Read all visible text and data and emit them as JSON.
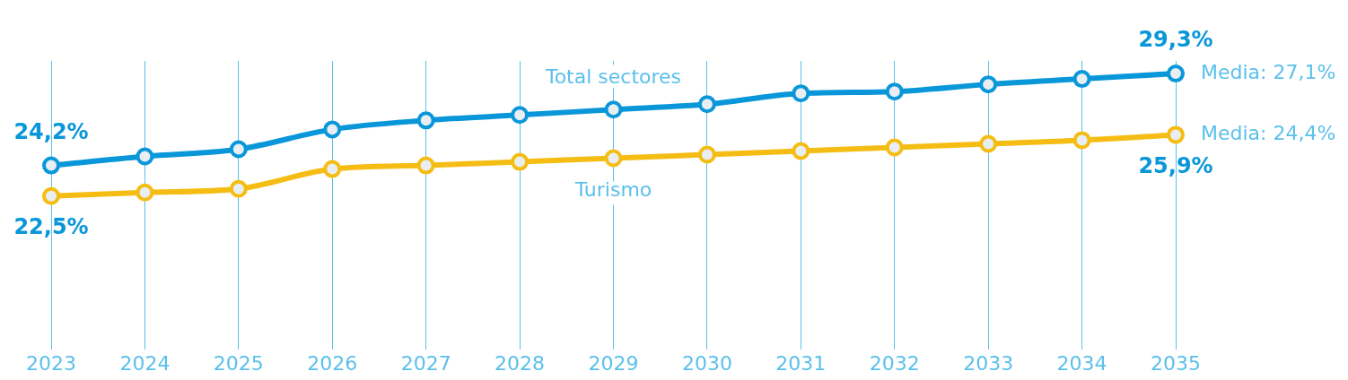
{
  "chart_data": {
    "type": "line",
    "categories": [
      "2023",
      "2024",
      "2025",
      "2026",
      "2027",
      "2028",
      "2029",
      "2030",
      "2031",
      "2032",
      "2033",
      "2034",
      "2035"
    ],
    "tick_labels": "x",
    "grid": "x",
    "marker": "circle",
    "legend": false,
    "series": [
      {
        "name": "Total sectores",
        "color": "#0a97d9",
        "values": [
          24.2,
          24.7,
          25.1,
          26.2,
          26.7,
          27.0,
          27.3,
          27.6,
          28.2,
          28.3,
          28.7,
          29.0,
          29.3
        ],
        "value_labels": [
          "24,2%",
          null,
          null,
          null,
          null,
          null,
          null,
          null,
          null,
          null,
          null,
          null,
          "29,3%"
        ]
      },
      {
        "name": "Turismo",
        "color": "#f5bd14",
        "values": [
          22.5,
          22.7,
          22.9,
          24.0,
          24.2,
          24.4,
          24.6,
          24.8,
          25.0,
          25.2,
          25.4,
          25.6,
          25.9
        ],
        "value_labels": [
          "22,5%",
          null,
          null,
          null,
          null,
          null,
          null,
          null,
          null,
          null,
          null,
          null,
          "25,9%"
        ]
      }
    ],
    "annotations": [
      "Media: 27,1%",
      "Media: 24,4%"
    ]
  }
}
